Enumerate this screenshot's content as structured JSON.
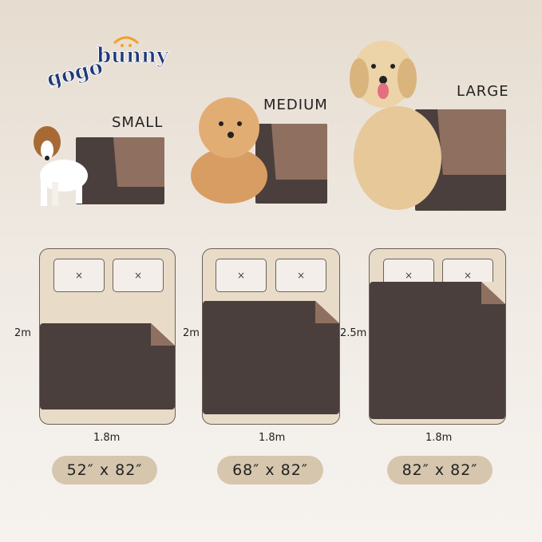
{
  "brand": {
    "logo_text": "gogobunny"
  },
  "sizes": [
    {
      "label": "SMALL",
      "width": "1.8m",
      "length": "2m",
      "dimensions": "52″ x 82″"
    },
    {
      "label": "MEDIUM",
      "width": "1.8m",
      "length": "2m",
      "dimensions": "68″ x 82″"
    },
    {
      "label": "LARGE",
      "width": "1.8m",
      "length": "2.5m",
      "dimensions": "82″ x 82″"
    }
  ],
  "pillow_mark": "×",
  "colors": {
    "mat": "#4a3f3c",
    "mat_reverse": "#8f7060",
    "bed": "#e8dcc8",
    "pill": "#d6c6ae",
    "logo": "#1f3a7a",
    "logo_accent": "#f0a22a"
  }
}
